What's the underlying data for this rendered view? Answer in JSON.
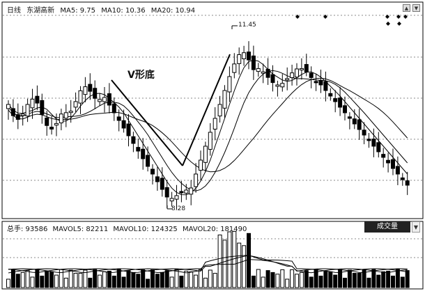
{
  "header": {
    "period": "日线",
    "stock_name": "东湖高新",
    "ma5": "MA5: 9.75",
    "ma10": "MA10: 10.36",
    "ma20": "MA20: 10.94"
  },
  "annotation": {
    "label": "V形底"
  },
  "price_marks": {
    "high": "11.45",
    "low": "8.28"
  },
  "volume_header": {
    "total": "总手: 93586",
    "mavol5": "MAVOL5: 82211",
    "mavol10": "MAVOL10: 124325",
    "mavol20": "MAVOL20: 181490"
  },
  "volume_tab": {
    "label": "成交量",
    "arrow": "▼"
  },
  "corner_buttons": {
    "first": "▲",
    "second": "▼"
  },
  "colors": {
    "up": "#ffffff",
    "down": "#000000",
    "grid": "#888888",
    "candle_outline": "#000000"
  }
}
